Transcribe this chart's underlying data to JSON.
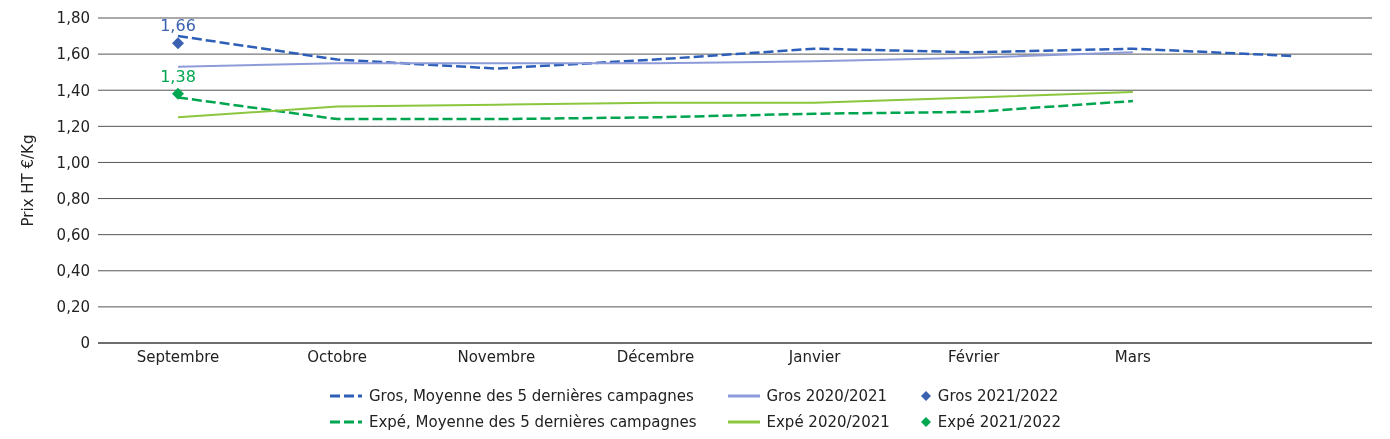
{
  "chart_data": {
    "type": "line",
    "ylabel": "Prix HT €/Kg",
    "categories": [
      "Septembre",
      "Octobre",
      "Novembre",
      "Décembre",
      "Janvier",
      "Février",
      "Mars",
      null
    ],
    "ylim": [
      0,
      1.8
    ],
    "yticks": [
      0,
      {
        "value": 0.2,
        "label": "0,20"
      },
      {
        "value": 0.4,
        "label": "0,40"
      },
      {
        "value": 0.6,
        "label": "0,60"
      },
      {
        "value": 0.8,
        "label": "0,80"
      },
      {
        "value": 1,
        "label": "1,00"
      },
      {
        "value": 1.2,
        "label": "1,20"
      },
      {
        "value": 1.4,
        "label": "1,40"
      },
      {
        "value": 1.6,
        "label": "1,60"
      },
      {
        "value": 1.8,
        "label": "1,80"
      }
    ],
    "grid": "y",
    "legend": "bottom",
    "series": [
      {
        "name": "Gros, Moyenne des 5 dernières campagnes",
        "color": "#2e5fb8",
        "line_style": "dashed",
        "marker": "none",
        "values": [
          1.7,
          1.57,
          1.52,
          1.57,
          1.63,
          1.61,
          1.63,
          1.59
        ]
      },
      {
        "name": "Gros 2020/2021",
        "color": "#8e9bd9",
        "line_style": "solid",
        "marker": "none",
        "values": [
          1.53,
          1.55,
          1.55,
          1.55,
          1.56,
          1.58,
          1.61,
          null
        ]
      },
      {
        "name": "Gros 2021/2022",
        "type": "scatter",
        "color": "#3a62b0",
        "marker": "diamond",
        "values": [
          1.66,
          null,
          null,
          null,
          null,
          null,
          null,
          null
        ],
        "value_labels": [
          "1,66",
          null,
          null,
          null,
          null,
          null,
          null,
          null
        ]
      },
      {
        "name": "Expé, Moyenne des 5 dernières campagnes",
        "color": "#00a550",
        "line_style": "dashed",
        "marker": "none",
        "values": [
          1.36,
          1.24,
          1.24,
          1.25,
          1.27,
          1.28,
          1.34,
          null
        ]
      },
      {
        "name": "Expé 2020/2021",
        "color": "#8cc63f",
        "line_style": "solid",
        "marker": "none",
        "values": [
          1.25,
          1.31,
          1.32,
          1.33,
          1.33,
          1.36,
          1.39,
          null
        ]
      },
      {
        "name": "Expé 2021/2022",
        "type": "scatter",
        "color": "#00a650",
        "marker": "diamond",
        "values": [
          1.38,
          null,
          null,
          null,
          null,
          null,
          null,
          null
        ],
        "value_labels": [
          "1,38",
          null,
          null,
          null,
          null,
          null,
          null,
          null
        ]
      }
    ]
  }
}
